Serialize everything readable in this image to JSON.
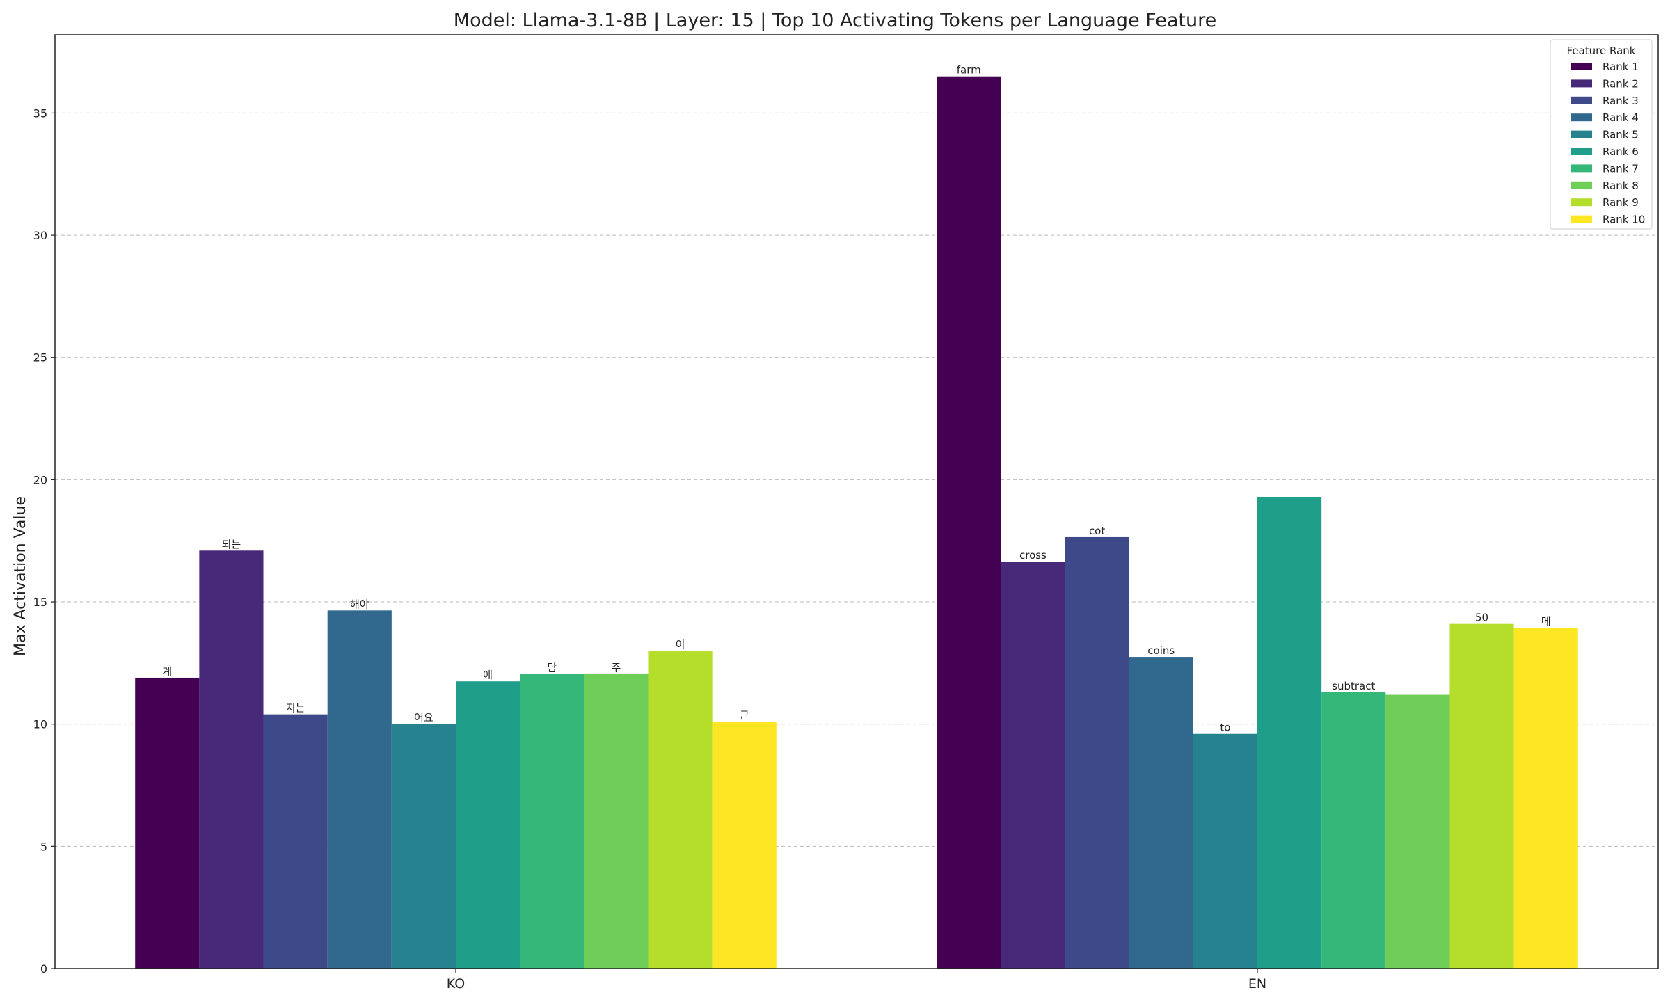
{
  "chart_data": {
    "type": "bar",
    "title": "Model: Llama-3.1-8B | Layer: 15 | Top 10 Activating Tokens per Language Feature",
    "xlabel": "",
    "ylabel": "Max Activation Value",
    "categories": [
      "KO",
      "EN"
    ],
    "ylim": [
      0,
      38.2
    ],
    "yticks": [
      0,
      5,
      10,
      15,
      20,
      25,
      30,
      35
    ],
    "grid": "horizontal dashed",
    "legend_title": "Feature Rank",
    "legend_position": "top-right",
    "series": [
      {
        "name": "Rank 1",
        "color": "#440154",
        "values": [
          11.9,
          36.5
        ],
        "labels": [
          "계",
          "farm"
        ]
      },
      {
        "name": "Rank 2",
        "color": "#482878",
        "values": [
          17.1,
          16.65
        ],
        "labels": [
          "되는",
          "cross"
        ]
      },
      {
        "name": "Rank 3",
        "color": "#3e4989",
        "values": [
          10.4,
          17.65
        ],
        "labels": [
          "지는",
          "cot"
        ]
      },
      {
        "name": "Rank 4",
        "color": "#31688e",
        "values": [
          14.65,
          12.75
        ],
        "labels": [
          "해야",
          "coins"
        ]
      },
      {
        "name": "Rank 5",
        "color": "#26828e",
        "values": [
          10.0,
          9.6
        ],
        "labels": [
          "어요",
          "to"
        ]
      },
      {
        "name": "Rank 6",
        "color": "#1f9e89",
        "values": [
          11.75,
          19.3
        ],
        "labels": [
          "에",
          ""
        ]
      },
      {
        "name": "Rank 7",
        "color": "#35b779",
        "values": [
          12.05,
          11.3
        ],
        "labels": [
          "담",
          "subtract"
        ]
      },
      {
        "name": "Rank 8",
        "color": "#6ece58",
        "values": [
          12.05,
          11.2
        ],
        "labels": [
          "주",
          ""
        ]
      },
      {
        "name": "Rank 9",
        "color": "#b5de2b",
        "values": [
          13.0,
          14.1
        ],
        "labels": [
          "이",
          "50"
        ]
      },
      {
        "name": "Rank 10",
        "color": "#fde725",
        "values": [
          10.1,
          13.95
        ],
        "labels": [
          "근",
          "메"
        ]
      }
    ]
  }
}
